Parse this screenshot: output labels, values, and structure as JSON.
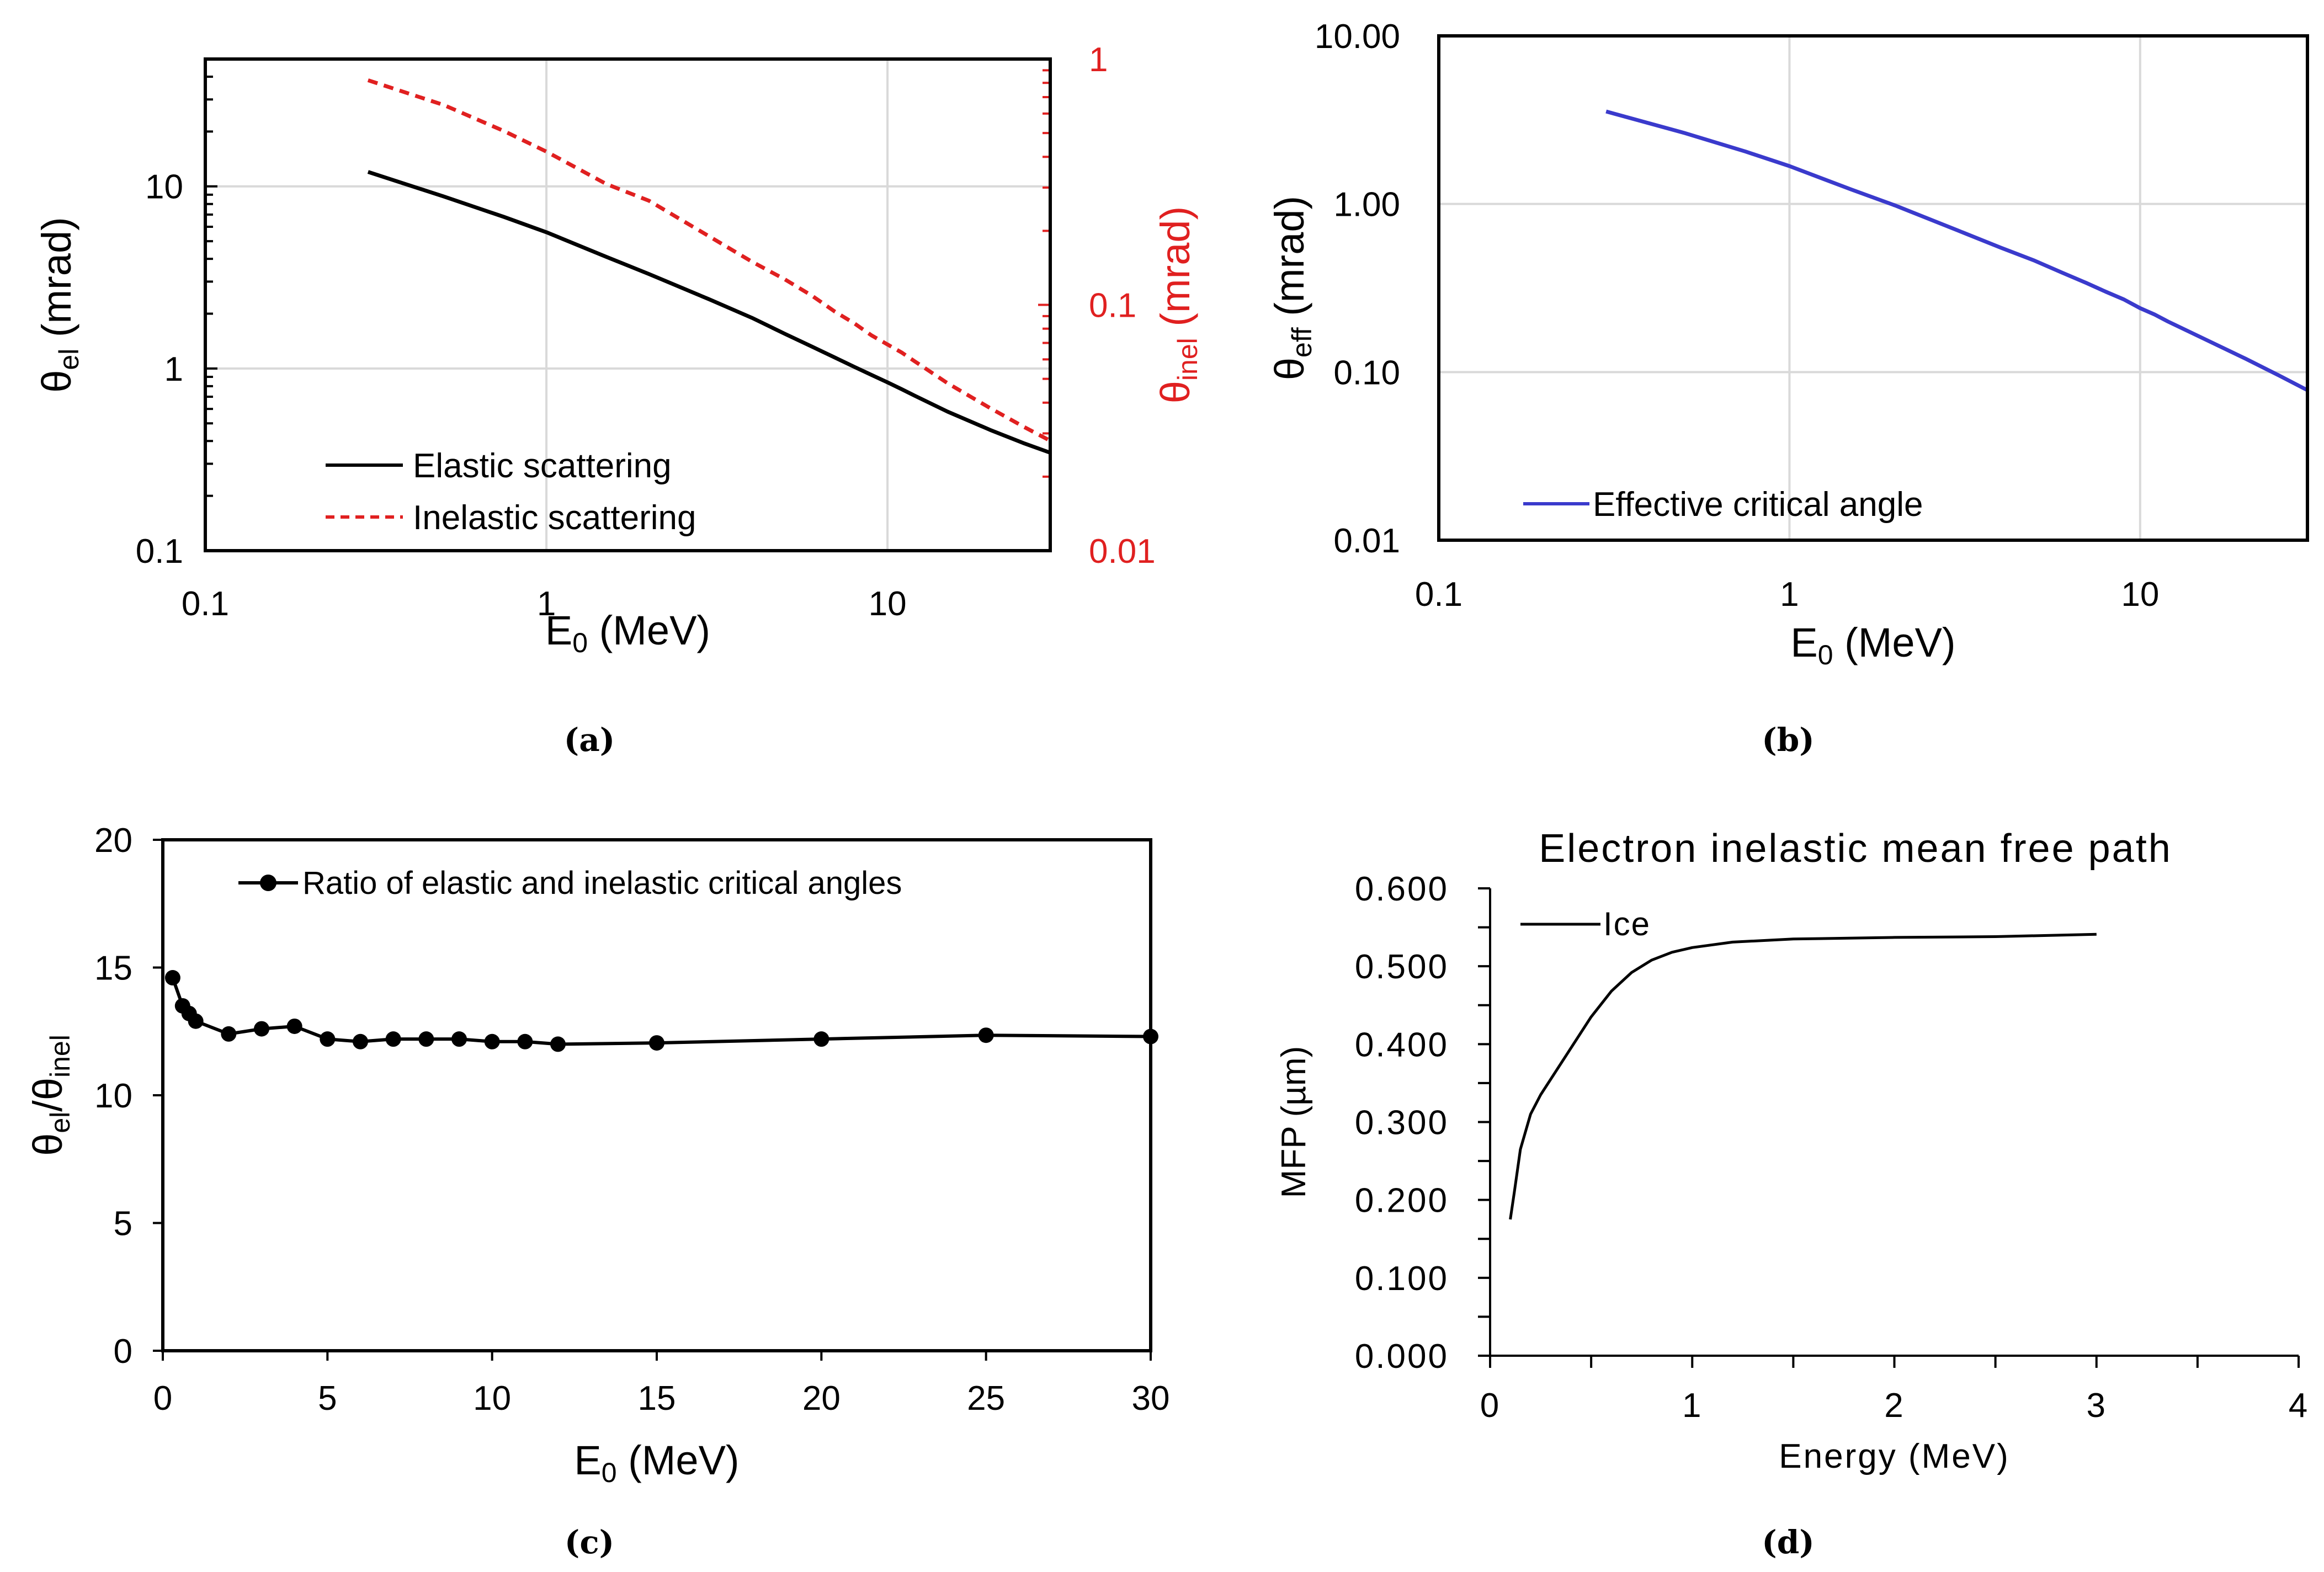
{
  "chart_data": [
    {
      "panel": "(a)",
      "type": "line",
      "xscale": "log",
      "yscale": "log",
      "y2scale": "log",
      "xlim": [
        0.1,
        30
      ],
      "ylim": [
        0.1,
        50
      ],
      "y2lim": [
        0.01,
        1
      ],
      "x_ticks": [
        "0.1",
        "1",
        "10"
      ],
      "y_ticks": [
        "0.1",
        "1",
        "10"
      ],
      "y2_ticks": [
        "0.01",
        "0.1",
        "1"
      ],
      "xlabel_main": "E",
      "xlabel_sub": "0",
      "xlabel_rest": " (MeV)",
      "ylabel_main": "θ",
      "ylabel_sub": "el",
      "ylabel_rest": " (mrad)",
      "y2label_main": "θ",
      "y2label_sub": "inel",
      "y2label_rest": " (mrad)",
      "series": [
        {
          "name": "Elastic scattering",
          "axis": "y",
          "color": "#000000",
          "dash": "solid",
          "x": [
            0.3,
            0.5,
            0.75,
            1,
            1.5,
            2,
            3,
            4,
            5,
            6,
            7,
            8,
            9,
            10,
            11,
            12,
            15,
            20,
            25,
            30
          ],
          "y": [
            12.0,
            8.8,
            6.8,
            5.6,
            4.1,
            3.3,
            2.4,
            1.9,
            1.55,
            1.32,
            1.15,
            1.02,
            0.92,
            0.84,
            0.77,
            0.71,
            0.58,
            0.46,
            0.39,
            0.345
          ]
        },
        {
          "name": "Inelastic scattering",
          "axis": "y2",
          "color": "#e02020",
          "dash": "dashed",
          "x": [
            0.3,
            0.5,
            0.75,
            1,
            1.5,
            2,
            3,
            4,
            5,
            6,
            7,
            8,
            9,
            10,
            11,
            12,
            15,
            20,
            25,
            30
          ],
          "y": [
            0.82,
            0.65,
            0.51,
            0.42,
            0.31,
            0.265,
            0.19,
            0.15,
            0.127,
            0.109,
            0.094,
            0.084,
            0.075,
            0.069,
            0.064,
            0.059,
            0.048,
            0.038,
            0.032,
            0.028
          ]
        }
      ],
      "legend_position": "bottom-left"
    },
    {
      "panel": "(b)",
      "type": "line",
      "xscale": "log",
      "yscale": "log",
      "xlim": [
        0.1,
        30
      ],
      "ylim": [
        0.01,
        10
      ],
      "x_ticks": [
        "0.1",
        "1",
        "10"
      ],
      "y_ticks": [
        "0.01",
        "0.10",
        "1.00",
        "10.00"
      ],
      "xlabel_main": "E",
      "xlabel_sub": "0",
      "xlabel_rest": " (MeV)",
      "ylabel_main": "θ",
      "ylabel_sub": "eff",
      "ylabel_rest": " (mrad)",
      "series": [
        {
          "name": "Effective critical angle",
          "color": "#3a3acc",
          "dash": "solid",
          "x": [
            0.3,
            0.5,
            0.75,
            1,
            1.5,
            2,
            3,
            4,
            5,
            6,
            7,
            8,
            9,
            10,
            11,
            12,
            15,
            20,
            25,
            30
          ],
          "y": [
            3.55,
            2.65,
            2.05,
            1.68,
            1.22,
            0.98,
            0.7,
            0.55,
            0.46,
            0.39,
            0.34,
            0.3,
            0.27,
            0.24,
            0.22,
            0.2,
            0.16,
            0.12,
            0.095,
            0.078
          ]
        }
      ],
      "legend_position": "bottom-left"
    },
    {
      "panel": "(c)",
      "type": "line",
      "xlim": [
        0,
        30
      ],
      "ylim": [
        0,
        20
      ],
      "x_ticks": [
        "0",
        "5",
        "10",
        "15",
        "20",
        "25",
        "30"
      ],
      "y_ticks": [
        "0",
        "5",
        "10",
        "15",
        "20"
      ],
      "xlabel_main": "E",
      "xlabel_sub": "0",
      "xlabel_rest": " (MeV)",
      "ylabel_main": "θ",
      "ylabel_sub": "el",
      "ylabel_mid": "/θ",
      "ylabel_sub2": "inel",
      "series": [
        {
          "name": "Ratio of elastic and inelastic critical angles",
          "color": "#000000",
          "markers": true,
          "x": [
            0.3,
            0.6,
            0.8,
            1,
            2,
            3,
            4,
            5,
            6,
            7,
            8,
            9,
            10,
            11,
            12,
            15,
            20,
            25,
            30
          ],
          "y": [
            14.6,
            13.5,
            13.2,
            12.9,
            12.4,
            12.6,
            12.7,
            12.2,
            12.1,
            12.2,
            12.2,
            12.2,
            12.1,
            12.1,
            12.0,
            12.05,
            12.2,
            12.35,
            12.3
          ]
        }
      ],
      "legend_position": "top-left"
    },
    {
      "panel": "(d)",
      "type": "line",
      "title": "Electron inelastic mean free path",
      "xlim": [
        0,
        4
      ],
      "ylim": [
        0,
        0.6
      ],
      "x_ticks": [
        "0",
        "1",
        "2",
        "3",
        "4"
      ],
      "y_ticks": [
        "0.000",
        "0.100",
        "0.200",
        "0.300",
        "0.400",
        "0.500",
        "0.600"
      ],
      "xlabel": "Energy (MeV)",
      "ylabel": "MFP (µm)",
      "series": [
        {
          "name": "Ice",
          "color": "#000000",
          "x": [
            0.1,
            0.12,
            0.15,
            0.2,
            0.25,
            0.3,
            0.4,
            0.5,
            0.6,
            0.7,
            0.8,
            0.9,
            1.0,
            1.2,
            1.5,
            2.0,
            2.5,
            3.0
          ],
          "y": [
            0.175,
            0.21,
            0.265,
            0.31,
            0.335,
            0.355,
            0.395,
            0.435,
            0.468,
            0.492,
            0.508,
            0.518,
            0.524,
            0.531,
            0.535,
            0.537,
            0.538,
            0.541
          ]
        }
      ],
      "legend_position": "top-left"
    }
  ],
  "captions": [
    "(a)",
    "(b)",
    "(c)",
    "(d)"
  ]
}
